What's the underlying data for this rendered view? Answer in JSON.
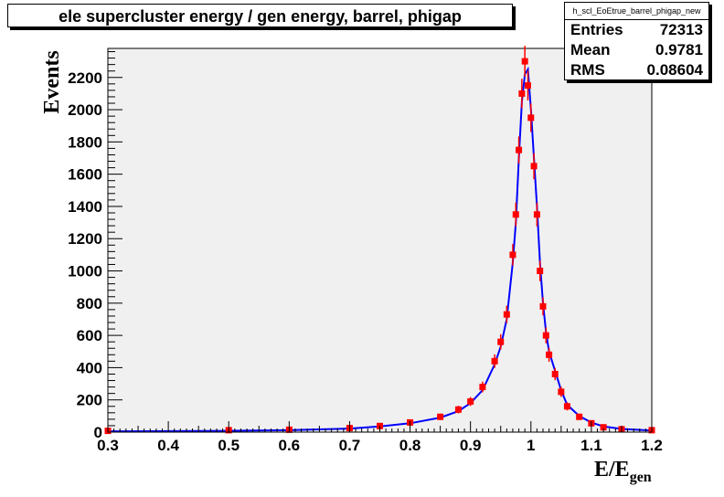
{
  "chart_data": {
    "type": "histogram",
    "title": "ele supercluster energy / gen energy, barrel, phigap",
    "xlabel": "E/E",
    "xlabel_sub": "gen",
    "ylabel": "Events",
    "xlim": [
      0.3,
      1.2
    ],
    "ylim": [
      0,
      2380
    ],
    "xticks": [
      "0.3",
      "0.4",
      "0.5",
      "0.6",
      "0.7",
      "0.8",
      "0.9",
      "1",
      "1.1",
      "1.2"
    ],
    "yticks": [
      "0",
      "200",
      "400",
      "600",
      "800",
      "1000",
      "1200",
      "1400",
      "1600",
      "1800",
      "2000",
      "2200"
    ],
    "grid": false,
    "legend": "none",
    "series": [
      {
        "color": "#0000ff",
        "style": "step-line",
        "x": [
          0.3,
          0.5,
          0.6,
          0.7,
          0.75,
          0.8,
          0.85,
          0.88,
          0.9,
          0.92,
          0.94,
          0.95,
          0.96,
          0.97,
          0.975,
          0.98,
          0.985,
          0.99,
          0.995,
          1.0,
          1.005,
          1.01,
          1.015,
          1.02,
          1.025,
          1.03,
          1.04,
          1.05,
          1.06,
          1.08,
          1.1,
          1.12,
          1.15,
          1.2
        ],
        "y": [
          5,
          8,
          12,
          22,
          35,
          55,
          90,
          130,
          180,
          260,
          420,
          530,
          700,
          1050,
          1300,
          1700,
          2050,
          2220,
          2250,
          2000,
          1700,
          1400,
          1050,
          800,
          620,
          500,
          380,
          260,
          170,
          100,
          60,
          35,
          20,
          10
        ]
      },
      {
        "color": "#ff0000",
        "style": "markers",
        "x": [
          0.3,
          0.5,
          0.6,
          0.7,
          0.75,
          0.8,
          0.85,
          0.88,
          0.9,
          0.92,
          0.94,
          0.95,
          0.96,
          0.97,
          0.975,
          0.98,
          0.985,
          0.99,
          0.995,
          1.0,
          1.005,
          1.01,
          1.015,
          1.02,
          1.025,
          1.03,
          1.04,
          1.05,
          1.06,
          1.08,
          1.1,
          1.12,
          1.15,
          1.2
        ],
        "y": [
          8,
          12,
          15,
          25,
          38,
          60,
          95,
          140,
          190,
          280,
          440,
          560,
          730,
          1100,
          1350,
          1750,
          2100,
          2300,
          2150,
          1950,
          1650,
          1350,
          1000,
          780,
          600,
          480,
          360,
          250,
          160,
          95,
          55,
          30,
          18,
          12
        ]
      }
    ]
  },
  "stats": {
    "name": "h_scl_EoEtrue_barrel_phigap_new",
    "entries_label": "Entries",
    "entries": "72313",
    "mean_label": "Mean",
    "mean": "0.9781",
    "rms_label": "RMS",
    "rms": "0.08604"
  }
}
